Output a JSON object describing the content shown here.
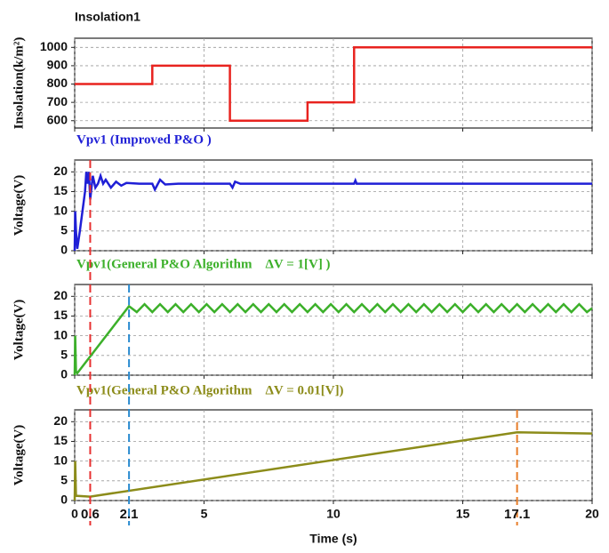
{
  "chart_data": [
    {
      "type": "line",
      "title": "Insolation1",
      "title_color": "#e8231f",
      "ylabel": "Insolation(k/m²)",
      "xlim": [
        0,
        20
      ],
      "xticks": [
        0,
        5,
        10,
        15,
        20
      ],
      "ylim": [
        560,
        1050
      ],
      "yticks": [
        600,
        700,
        800,
        900,
        1000
      ],
      "grid": true,
      "series": [
        {
          "color": "#e8231f",
          "x": [
            0,
            3,
            3,
            6,
            6,
            9,
            9,
            10.8,
            10.8,
            20
          ],
          "values": [
            800,
            800,
            900,
            900,
            600,
            600,
            700,
            700,
            1000,
            1000
          ]
        }
      ]
    },
    {
      "type": "line",
      "title": "Vpv1 (Improved P&O )",
      "title_color": "#1f1fd6",
      "ylabel": "Voltage(V)",
      "xlim": [
        0,
        20
      ],
      "xticks": [
        0,
        5,
        10,
        15,
        20
      ],
      "ylim": [
        0,
        23
      ],
      "yticks": [
        0,
        5,
        10,
        15,
        20
      ],
      "grid": true,
      "series": [
        {
          "color": "#1f1fd6",
          "x": [
            0,
            0.02,
            0.05,
            0.1,
            0.2,
            0.3,
            0.4,
            0.45,
            0.5,
            0.55,
            0.6,
            0.7,
            0.8,
            0.9,
            1.0,
            1.1,
            1.2,
            1.4,
            1.6,
            1.8,
            2.0,
            2.5,
            3,
            3.1,
            3.3,
            3.5,
            4,
            6,
            6.1,
            6.2,
            6.4,
            10.8,
            10.85,
            10.9,
            20
          ],
          "values": [
            0,
            10,
            5,
            0.5,
            5,
            10,
            15,
            20,
            17,
            20,
            13,
            19,
            16,
            17,
            19,
            17,
            18,
            16,
            17.5,
            16.5,
            17.2,
            17,
            17,
            15.5,
            18,
            16.8,
            17,
            17,
            16,
            17.5,
            17,
            17,
            17.8,
            17,
            17
          ]
        }
      ]
    },
    {
      "type": "line",
      "title": "Vpv1(General P&O Algorithm    ΔV = 1[V] )",
      "title_color": "#3cb02a",
      "ylabel": "Voltage(V)",
      "xlim": [
        0,
        20
      ],
      "xticks": [
        0,
        5,
        10,
        15,
        20
      ],
      "ylim": [
        0,
        23
      ],
      "yticks": [
        0,
        5,
        10,
        15,
        20
      ],
      "grid": true,
      "series": [
        {
          "color": "#3cb02a",
          "x": [
            0,
            0.02,
            0.05,
            0.1,
            2.1,
            2.4,
            2.7,
            3,
            3.3,
            3.6,
            3.9,
            4.2,
            4.5,
            4.8,
            5.1,
            5.4,
            5.7,
            6,
            6.3,
            6.6,
            6.9,
            7.2,
            7.5,
            7.8,
            8.1,
            8.4,
            8.7,
            9,
            9.3,
            9.6,
            9.9,
            10.2,
            10.5,
            10.8,
            11.1,
            11.4,
            11.7,
            12,
            12.3,
            12.6,
            12.9,
            13.2,
            13.5,
            13.8,
            14.1,
            14.4,
            14.7,
            15,
            15.3,
            15.6,
            15.9,
            16.2,
            16.5,
            16.8,
            17.1,
            17.4,
            17.7,
            18,
            18.3,
            18.6,
            18.9,
            19.2,
            19.5,
            19.8,
            20
          ],
          "values": [
            0,
            10,
            1,
            0.5,
            17.5,
            16,
            18,
            16,
            18,
            16,
            18,
            16,
            18,
            16,
            18,
            16,
            18,
            16,
            18,
            16,
            18,
            16,
            18,
            16,
            18,
            16,
            18,
            16,
            18,
            16,
            18,
            16,
            18,
            16,
            18,
            16,
            18,
            16,
            18,
            16,
            18,
            16,
            18,
            16,
            18,
            16,
            18,
            16,
            18,
            16,
            18,
            16,
            18,
            16,
            18,
            16,
            18,
            16,
            18,
            16,
            18,
            16,
            18,
            16,
            17
          ]
        }
      ]
    },
    {
      "type": "line",
      "title": "Vpv1(General P&O Algorithm    ΔV = 0.01[V])",
      "title_color": "#8c8c1a",
      "ylabel": "Voltage(V)",
      "xlabel": "Time (s)",
      "xlim": [
        0,
        20
      ],
      "xticks": [
        0,
        5,
        10,
        15,
        20
      ],
      "ylim": [
        0,
        23
      ],
      "yticks": [
        0,
        5,
        10,
        15,
        20
      ],
      "grid": true,
      "markers": [
        {
          "x": 0.6,
          "color": "#e83030"
        },
        {
          "x": 2.1,
          "color": "#2a8bd0"
        },
        {
          "x": 17.1,
          "color": "#e87d28"
        }
      ],
      "series": [
        {
          "color": "#8c8c1a",
          "x": [
            0,
            0.02,
            0.05,
            0.6,
            17.1,
            20
          ],
          "values": [
            0,
            10,
            1.2,
            1,
            17.3,
            17
          ]
        }
      ]
    }
  ]
}
